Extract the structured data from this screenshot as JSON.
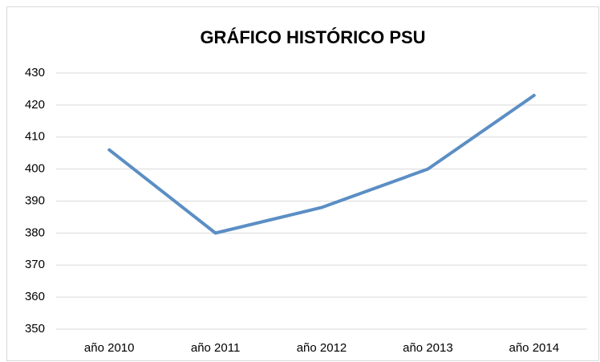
{
  "chart_data": {
    "type": "line",
    "title": "GRÁFICO HISTÓRICO PSU",
    "categories": [
      "año 2010",
      "año 2011",
      "año 2012",
      "año 2013",
      "año 2014"
    ],
    "series": [
      {
        "name": "PSU",
        "color": "#5b8ec4",
        "values": [
          406,
          380,
          388,
          400,
          423
        ]
      }
    ],
    "ylim": [
      350,
      430
    ],
    "yticks": [
      350,
      360,
      370,
      380,
      390,
      400,
      410,
      420,
      430
    ],
    "grid": true
  }
}
